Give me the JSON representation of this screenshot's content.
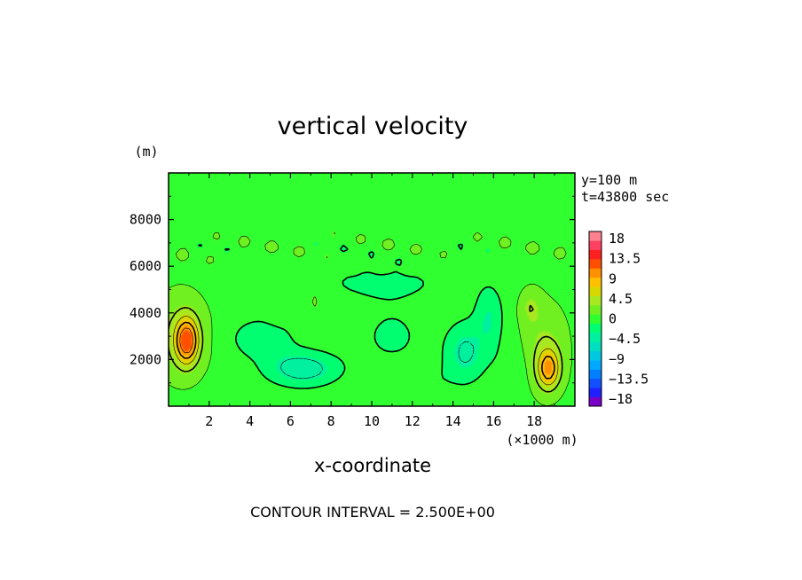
{
  "chart_data": {
    "type": "heatmap",
    "title": "vertical velocity",
    "xlabel": "x-coordinate",
    "x_unit": "(×1000 m)",
    "y_unit": "(m)",
    "xlim": [
      0,
      20
    ],
    "ylim": [
      0,
      10000
    ],
    "x_ticks": [
      2,
      4,
      6,
      8,
      10,
      12,
      14,
      16,
      18
    ],
    "y_ticks": [
      2000,
      4000,
      6000,
      8000
    ],
    "info": [
      "y=100 m",
      "t=43800 sec"
    ],
    "footer": "CONTOUR INTERVAL = 2.500E+00",
    "colorbar": {
      "labels": [
        "18",
        "13.5",
        "9",
        "4.5",
        "0",
        "-4.5",
        "-9",
        "-13.5",
        "-18"
      ],
      "levels": [
        -20,
        -18,
        -15.5,
        -13.5,
        -11,
        -9,
        -6.5,
        -4.5,
        -2,
        0,
        2.5,
        4.5,
        7,
        9,
        11.5,
        13.5,
        16,
        18,
        20
      ],
      "colors": [
        "#7a00c8",
        "#2020ff",
        "#1050ff",
        "#0080ff",
        "#00a8ff",
        "#00c8e0",
        "#00e0c0",
        "#00f0a0",
        "#00ff70",
        "#30ff30",
        "#70f020",
        "#a8e820",
        "#d8d800",
        "#ffc000",
        "#ff9000",
        "#ff5000",
        "#ff2020",
        "#ff4060",
        "#ff8090"
      ]
    },
    "contour_interval": 2.5,
    "features": [
      {
        "x": 0.9,
        "y": 2800,
        "peak": 12.5,
        "note": "updraft"
      },
      {
        "x": 18.7,
        "y": 1600,
        "peak": 10,
        "note": "updraft"
      },
      {
        "x": 6.7,
        "y": 1500,
        "peak": -5.5,
        "note": "downdraft"
      },
      {
        "x": 14.8,
        "y": 2500,
        "peak": -4.5,
        "note": "downdraft"
      },
      {
        "x": 15.6,
        "y": 3700,
        "peak": -5,
        "note": "downdraft"
      }
    ]
  }
}
